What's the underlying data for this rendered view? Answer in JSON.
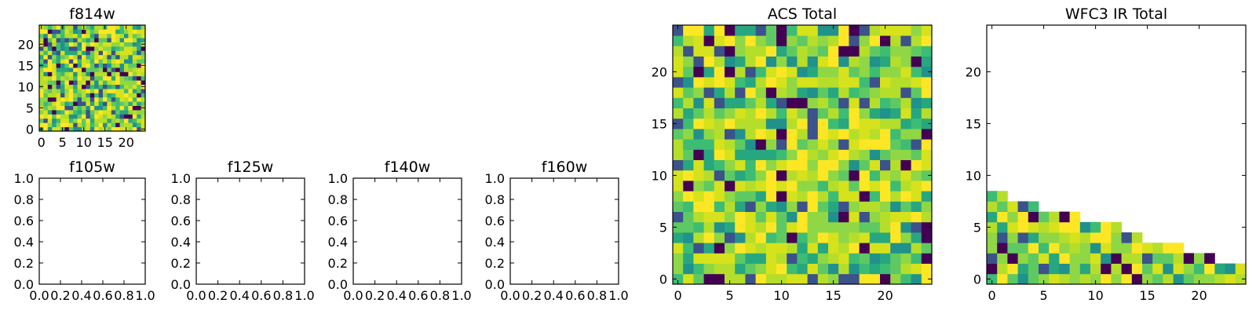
{
  "figure": {
    "colormap": "viridis",
    "palette": [
      "#440154",
      "#3b528b",
      "#21918c",
      "#27a77f",
      "#3dbc74",
      "#5ec962",
      "#8fd744",
      "#b5de2b",
      "#d6e21c",
      "#fde725"
    ]
  },
  "chart_data": [
    {
      "id": "f814w",
      "type": "heatmap",
      "title": "f814w",
      "xlim": [
        -0.5,
        24.5
      ],
      "ylim": [
        -0.5,
        24.5
      ],
      "xticks": [
        "0",
        "5",
        "10",
        "15",
        "20"
      ],
      "yticks": [
        "0",
        "5",
        "10",
        "15",
        "20"
      ],
      "seed": 7
    },
    {
      "id": "f105w",
      "type": "empty",
      "title": "f105w",
      "xlim": [
        0,
        1
      ],
      "ylim": [
        0,
        1
      ],
      "xticks": [
        "0.0",
        "0.2",
        "0.4",
        "0.6",
        "0.8",
        "1.0"
      ],
      "yticks": [
        "0.0",
        "0.2",
        "0.4",
        "0.6",
        "0.8",
        "1.0"
      ]
    },
    {
      "id": "f125w",
      "type": "empty",
      "title": "f125w",
      "xlim": [
        0,
        1
      ],
      "ylim": [
        0,
        1
      ],
      "xticks": [
        "0.0",
        "0.2",
        "0.4",
        "0.6",
        "0.8",
        "1.0"
      ],
      "yticks": [
        "0.0",
        "0.2",
        "0.4",
        "0.6",
        "0.8",
        "1.0"
      ]
    },
    {
      "id": "f140w",
      "type": "empty",
      "title": "f140w",
      "xlim": [
        0,
        1
      ],
      "ylim": [
        0,
        1
      ],
      "xticks": [
        "0.0",
        "0.2",
        "0.4",
        "0.6",
        "0.8",
        "1.0"
      ],
      "yticks": [
        "0.0",
        "0.2",
        "0.4",
        "0.6",
        "0.8",
        "1.0"
      ]
    },
    {
      "id": "f160w",
      "type": "empty",
      "title": "f160w",
      "xlim": [
        0,
        1
      ],
      "ylim": [
        0,
        1
      ],
      "xticks": [
        "0.0",
        "0.2",
        "0.4",
        "0.6",
        "0.8",
        "1.0"
      ],
      "yticks": [
        "0.0",
        "0.2",
        "0.4",
        "0.6",
        "0.8",
        "1.0"
      ]
    },
    {
      "id": "acs_total",
      "type": "heatmap",
      "title": "ACS Total",
      "xlim": [
        -0.5,
        24.5
      ],
      "ylim": [
        -0.5,
        24.5
      ],
      "xticks": [
        "0",
        "5",
        "10",
        "15",
        "20"
      ],
      "yticks": [
        "0",
        "5",
        "10",
        "15",
        "20"
      ],
      "seed": 21
    },
    {
      "id": "wfc3_ir_total",
      "type": "heatmap",
      "title": "WFC3 IR Total",
      "xlim": [
        -0.5,
        24.5
      ],
      "ylim": [
        -0.5,
        24.5
      ],
      "xticks": [
        "0",
        "5",
        "10",
        "15",
        "20"
      ],
      "yticks": [
        "0",
        "5",
        "10",
        "15",
        "20"
      ],
      "seed": 55,
      "column_heights": [
        9,
        9,
        8,
        8,
        8,
        7,
        7,
        7,
        7,
        6,
        6,
        6,
        6,
        5,
        5,
        4,
        4,
        4,
        4,
        3,
        3,
        3,
        2,
        2,
        2
      ],
      "note": "only the lower rows of each column are filled; the top of each column is blank"
    }
  ]
}
